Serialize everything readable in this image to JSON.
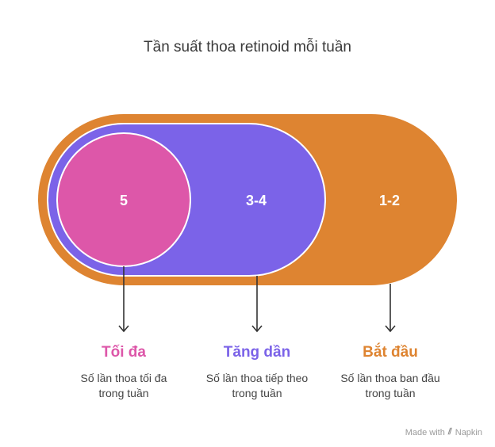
{
  "title": "Tần suất thoa retinoid mỗi tuần",
  "colors": {
    "start": "#DE8431",
    "increase": "#7B63E8",
    "max": "#DD57A9"
  },
  "stages": [
    {
      "value": "5",
      "label": "Tối đa",
      "description_line1": "Số lần thoa tối đa",
      "description_line2": "trong tuần"
    },
    {
      "value": "3-4",
      "label": "Tăng dần",
      "description_line1": "Số lần thoa tiếp theo",
      "description_line2": "trong tuần"
    },
    {
      "value": "1-2",
      "label": "Bắt đầu",
      "description_line1": "Số lần thoa ban đầu",
      "description_line2": "trong tuần"
    }
  ],
  "watermark": {
    "made_with": "Made with",
    "brand": "Napkin"
  }
}
